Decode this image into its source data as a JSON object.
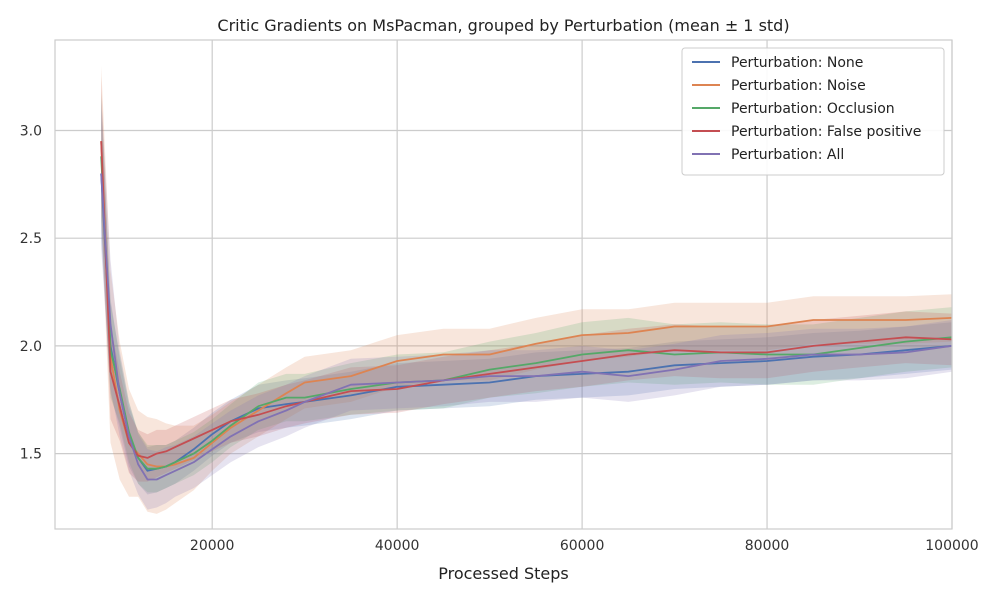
{
  "chart_data": {
    "type": "line",
    "title": "Critic Gradients on MsPacman, grouped by Perturbation (mean ± 1 std)",
    "xlabel": "Processed Steps",
    "ylabel": "",
    "xlim": [
      3000,
      100000
    ],
    "ylim": [
      1.15,
      3.42
    ],
    "xticks": [
      20000,
      40000,
      60000,
      80000,
      100000
    ],
    "yticks": [
      1.5,
      2.0,
      2.5,
      3.0
    ],
    "xtick_labels": [
      "20000",
      "40000",
      "60000",
      "80000",
      "100000"
    ],
    "ytick_labels": [
      "1.5",
      "2.0",
      "2.5",
      "3.0"
    ],
    "grid": true,
    "legend_position": "top-right",
    "x": [
      8000,
      9000,
      10000,
      11000,
      12000,
      13000,
      14000,
      15000,
      16000,
      18000,
      20000,
      22000,
      25000,
      28000,
      30000,
      35000,
      40000,
      45000,
      50000,
      55000,
      60000,
      65000,
      70000,
      75000,
      80000,
      85000,
      90000,
      95000,
      100000
    ],
    "series": [
      {
        "name": "Perturbation: None",
        "color": "#4c72b0",
        "values": [
          2.8,
          2.0,
          1.78,
          1.58,
          1.48,
          1.42,
          1.43,
          1.44,
          1.46,
          1.52,
          1.59,
          1.65,
          1.71,
          1.73,
          1.74,
          1.77,
          1.81,
          1.82,
          1.83,
          1.86,
          1.87,
          1.88,
          1.91,
          1.92,
          1.93,
          1.95,
          1.96,
          1.98,
          2.0
        ],
        "std": [
          0.3,
          0.22,
          0.16,
          0.14,
          0.12,
          0.11,
          0.11,
          0.1,
          0.1,
          0.1,
          0.1,
          0.1,
          0.11,
          0.11,
          0.11,
          0.11,
          0.11,
          0.11,
          0.11,
          0.11,
          0.11,
          0.11,
          0.11,
          0.11,
          0.11,
          0.11,
          0.11,
          0.11,
          0.11
        ]
      },
      {
        "name": "Perturbation: Noise",
        "color": "#dd8452",
        "values": [
          2.95,
          1.95,
          1.7,
          1.55,
          1.5,
          1.45,
          1.44,
          1.44,
          1.45,
          1.48,
          1.55,
          1.62,
          1.7,
          1.78,
          1.83,
          1.86,
          1.93,
          1.96,
          1.96,
          2.01,
          2.05,
          2.06,
          2.09,
          2.09,
          2.09,
          2.12,
          2.12,
          2.12,
          2.13
        ],
        "std": [
          0.35,
          0.4,
          0.32,
          0.25,
          0.2,
          0.22,
          0.22,
          0.2,
          0.18,
          0.15,
          0.13,
          0.12,
          0.12,
          0.12,
          0.12,
          0.12,
          0.12,
          0.12,
          0.12,
          0.12,
          0.12,
          0.11,
          0.11,
          0.11,
          0.11,
          0.11,
          0.11,
          0.11,
          0.11
        ]
      },
      {
        "name": "Perturbation: Occlusion",
        "color": "#55a868",
        "values": [
          2.88,
          1.98,
          1.8,
          1.6,
          1.48,
          1.43,
          1.43,
          1.44,
          1.46,
          1.5,
          1.56,
          1.63,
          1.72,
          1.76,
          1.76,
          1.8,
          1.83,
          1.84,
          1.89,
          1.92,
          1.96,
          1.98,
          1.96,
          1.97,
          1.96,
          1.96,
          1.99,
          2.02,
          2.04
        ],
        "std": [
          0.3,
          0.22,
          0.16,
          0.14,
          0.12,
          0.11,
          0.11,
          0.1,
          0.1,
          0.1,
          0.1,
          0.1,
          0.11,
          0.11,
          0.11,
          0.12,
          0.13,
          0.13,
          0.13,
          0.14,
          0.15,
          0.15,
          0.14,
          0.14,
          0.14,
          0.14,
          0.14,
          0.14,
          0.14
        ]
      },
      {
        "name": "Perturbation: False positive",
        "color": "#c44e52",
        "values": [
          2.95,
          1.88,
          1.72,
          1.55,
          1.49,
          1.48,
          1.5,
          1.51,
          1.53,
          1.57,
          1.61,
          1.65,
          1.68,
          1.72,
          1.74,
          1.79,
          1.8,
          1.84,
          1.87,
          1.9,
          1.93,
          1.96,
          1.98,
          1.97,
          1.97,
          2.0,
          2.02,
          2.04,
          2.03
        ],
        "std": [
          0.3,
          0.22,
          0.16,
          0.14,
          0.12,
          0.11,
          0.11,
          0.1,
          0.1,
          0.1,
          0.1,
          0.1,
          0.1,
          0.1,
          0.1,
          0.11,
          0.11,
          0.11,
          0.11,
          0.11,
          0.12,
          0.12,
          0.12,
          0.12,
          0.12,
          0.12,
          0.12,
          0.12,
          0.12
        ]
      },
      {
        "name": "Perturbation: All",
        "color": "#8172b3",
        "values": [
          2.8,
          2.1,
          1.78,
          1.58,
          1.45,
          1.38,
          1.38,
          1.4,
          1.42,
          1.46,
          1.52,
          1.58,
          1.65,
          1.7,
          1.74,
          1.82,
          1.83,
          1.84,
          1.86,
          1.86,
          1.88,
          1.86,
          1.89,
          1.93,
          1.94,
          1.96,
          1.96,
          1.97,
          2.0
        ],
        "std": [
          0.35,
          0.3,
          0.2,
          0.16,
          0.14,
          0.14,
          0.13,
          0.13,
          0.12,
          0.12,
          0.12,
          0.12,
          0.12,
          0.12,
          0.12,
          0.12,
          0.12,
          0.12,
          0.12,
          0.12,
          0.12,
          0.12,
          0.12,
          0.12,
          0.12,
          0.12,
          0.12,
          0.12,
          0.12
        ]
      }
    ]
  }
}
